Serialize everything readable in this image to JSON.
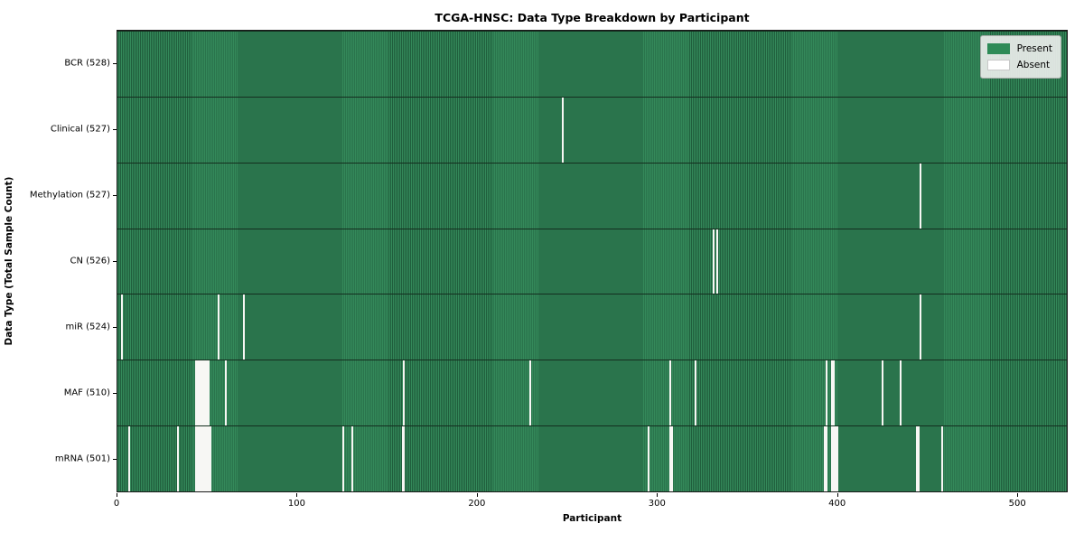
{
  "chart_data": {
    "type": "heatmap",
    "title": "TCGA-HNSC: Data Type Breakdown by Participant",
    "xlabel": "Participant",
    "ylabel": "Data Type (Total Sample Count)",
    "x_ticks": [
      0,
      100,
      200,
      300,
      400,
      500
    ],
    "x_range": [
      0,
      528
    ],
    "n_participants": 528,
    "grid": false,
    "legend_position": "upper right",
    "legend": [
      {
        "label": "Present",
        "color": "#2e8b57"
      },
      {
        "label": "Absent",
        "color": "#ffffff"
      }
    ],
    "rows": [
      {
        "label": "BCR (528)",
        "data_type": "BCR",
        "total_samples": 528,
        "absent_participants": []
      },
      {
        "label": "Clinical (527)",
        "data_type": "Clinical",
        "total_samples": 527,
        "absent_participants": [
          247
        ]
      },
      {
        "label": "Methylation (527)",
        "data_type": "Methylation",
        "total_samples": 527,
        "absent_participants": [
          446
        ]
      },
      {
        "label": "CN (526)",
        "data_type": "CN",
        "total_samples": 526,
        "absent_participants": [
          331,
          333
        ]
      },
      {
        "label": "miR (524)",
        "data_type": "miR",
        "total_samples": 524,
        "absent_participants": [
          2,
          56,
          70,
          446
        ]
      },
      {
        "label": "MAF (510)",
        "data_type": "MAF",
        "total_samples": 510,
        "absent_participants": [
          43,
          44,
          45,
          46,
          47,
          48,
          49,
          50,
          60,
          159,
          229,
          307,
          321,
          394,
          397,
          398,
          425,
          435
        ]
      },
      {
        "label": "mRNA (501)",
        "data_type": "mRNA",
        "total_samples": 501,
        "absent_participants": [
          6,
          33,
          43,
          44,
          45,
          46,
          47,
          48,
          49,
          50,
          51,
          125,
          130,
          158,
          159,
          295,
          307,
          308,
          393,
          394,
          397,
          398,
          399,
          400,
          444,
          445,
          458
        ]
      }
    ]
  }
}
